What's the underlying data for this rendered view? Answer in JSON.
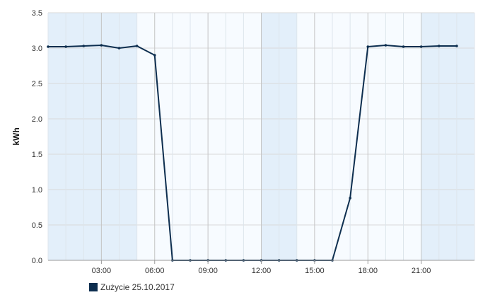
{
  "chart_data": {
    "type": "line",
    "title": "",
    "xlabel": "",
    "ylabel": "kWh",
    "ylim": [
      0,
      3.5
    ],
    "xlim": [
      0,
      24
    ],
    "y_ticks": [
      "0.0",
      "0.5",
      "1.0",
      "1.5",
      "2.0",
      "2.5",
      "3.0",
      "3.5"
    ],
    "x_ticks": [
      "03:00",
      "06:00",
      "09:00",
      "12:00",
      "15:00",
      "18:00",
      "21:00"
    ],
    "grid": true,
    "legend_position": "bottom-left",
    "series": [
      {
        "name": "Zużycie 25.10.2017",
        "color": "#0d2e4f",
        "x": [
          0,
          1,
          2,
          3,
          4,
          5,
          6,
          7,
          8,
          9,
          10,
          11,
          12,
          13,
          14,
          15,
          16,
          17,
          18,
          19,
          20,
          21,
          22,
          23
        ],
        "values": [
          3.02,
          3.02,
          3.03,
          3.04,
          3.0,
          3.03,
          2.9,
          0.0,
          0.0,
          0.0,
          0.0,
          0.0,
          0.0,
          0.0,
          0.0,
          0.0,
          0.0,
          0.88,
          3.02,
          3.04,
          3.02,
          3.02,
          3.03,
          3.03
        ]
      }
    ],
    "shaded_hours": [
      [
        0,
        5
      ],
      [
        12,
        14
      ],
      [
        21,
        24
      ]
    ]
  }
}
